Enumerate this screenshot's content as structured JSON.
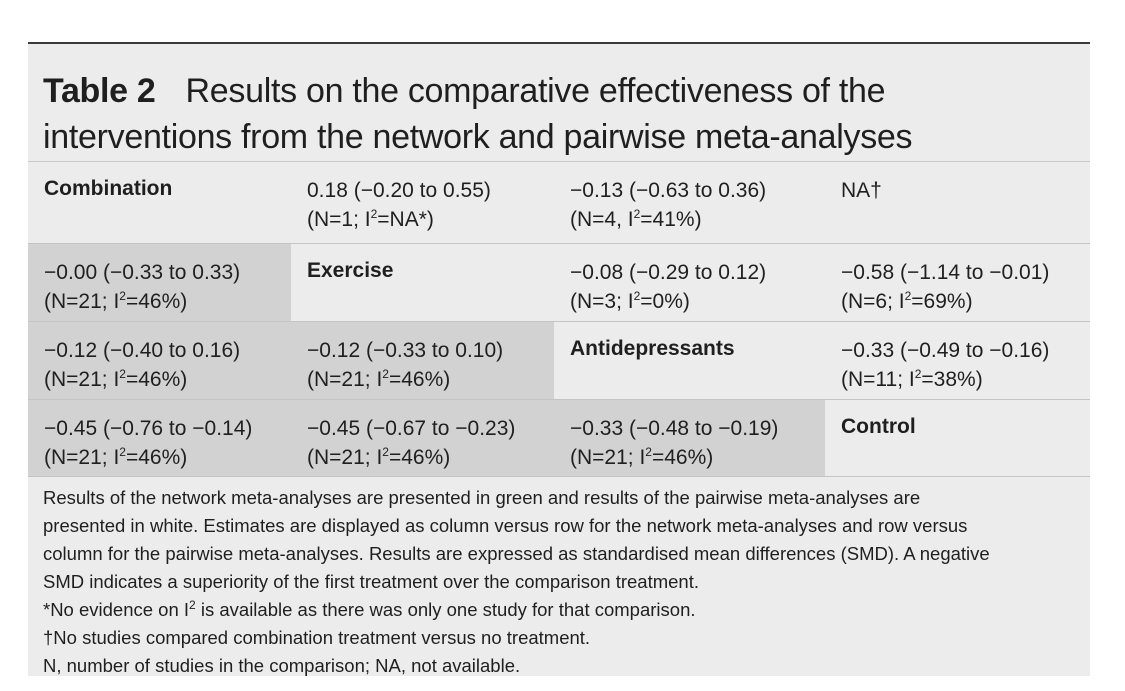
{
  "table": {
    "label": "Table 2",
    "title_line1": "Results on the comparative effectiveness of the",
    "title_line2": "interventions from the network and pairwise meta-analyses"
  },
  "rows": [
    {
      "cells": [
        {
          "type": "header",
          "text": "Combination"
        },
        {
          "type": "pairwise",
          "estimate": "0.18 (−0.20 to 0.55)",
          "n": "(N=1; I",
          "i2": "=NA*)"
        },
        {
          "type": "pairwise",
          "estimate": "−0.13 (−0.63 to 0.36)",
          "n": "(N=4, I",
          "i2": "=41%)"
        },
        {
          "type": "plain",
          "text": "NA†"
        }
      ]
    },
    {
      "cells": [
        {
          "type": "network",
          "estimate": "−0.00 (−0.33 to 0.33)",
          "n": "(N=21; I",
          "i2": "=46%)"
        },
        {
          "type": "header",
          "text": "Exercise"
        },
        {
          "type": "pairwise",
          "estimate": "−0.08 (−0.29 to 0.12)",
          "n": "(N=3; I",
          "i2": "=0%)"
        },
        {
          "type": "pairwise",
          "estimate": "−0.58 (−1.14 to −0.01)",
          "n": "(N=6; I",
          "i2": "=69%)"
        }
      ]
    },
    {
      "cells": [
        {
          "type": "network",
          "estimate": "−0.12 (−0.40 to 0.16)",
          "n": "(N=21; I",
          "i2": "=46%)"
        },
        {
          "type": "network",
          "estimate": "−0.12 (−0.33 to 0.10)",
          "n": "(N=21; I",
          "i2": "=46%)"
        },
        {
          "type": "header",
          "text": "Antidepressants"
        },
        {
          "type": "pairwise",
          "estimate": "−0.33 (−0.49 to −0.16)",
          "n": "(N=11; I",
          "i2": "=38%)"
        }
      ]
    },
    {
      "cells": [
        {
          "type": "network",
          "estimate": "−0.45 (−0.76 to −0.14)",
          "n": "(N=21; I",
          "i2": "=46%)"
        },
        {
          "type": "network",
          "estimate": "−0.45 (−0.67 to −0.23)",
          "n": "(N=21; I",
          "i2": "=46%)"
        },
        {
          "type": "network",
          "estimate": "−0.33 (−0.48 to −0.19)",
          "n": "(N=21; I",
          "i2": "=46%)"
        },
        {
          "type": "header",
          "text": "Control"
        }
      ]
    }
  ],
  "superscript": "2",
  "notes": {
    "line1": "Results of the network meta-analyses are presented in green and results of the pairwise meta-analyses are",
    "line2": "presented in white. Estimates are displayed as column versus row for the network meta-analyses and row versus",
    "line3": "column for the pairwise meta-analyses. Results are expressed as standardised mean differences (SMD). A negative",
    "line4": "SMD indicates a superiority of the first treatment over the comparison treatment.",
    "footnote_star_pre": "*No evidence on I",
    "footnote_star_post": " is available as there was only one study for that comparison.",
    "footnote_dagger": "†No studies compared combination treatment versus no treatment.",
    "abbreviations": "N, number of studies in the comparison; NA, not available."
  }
}
